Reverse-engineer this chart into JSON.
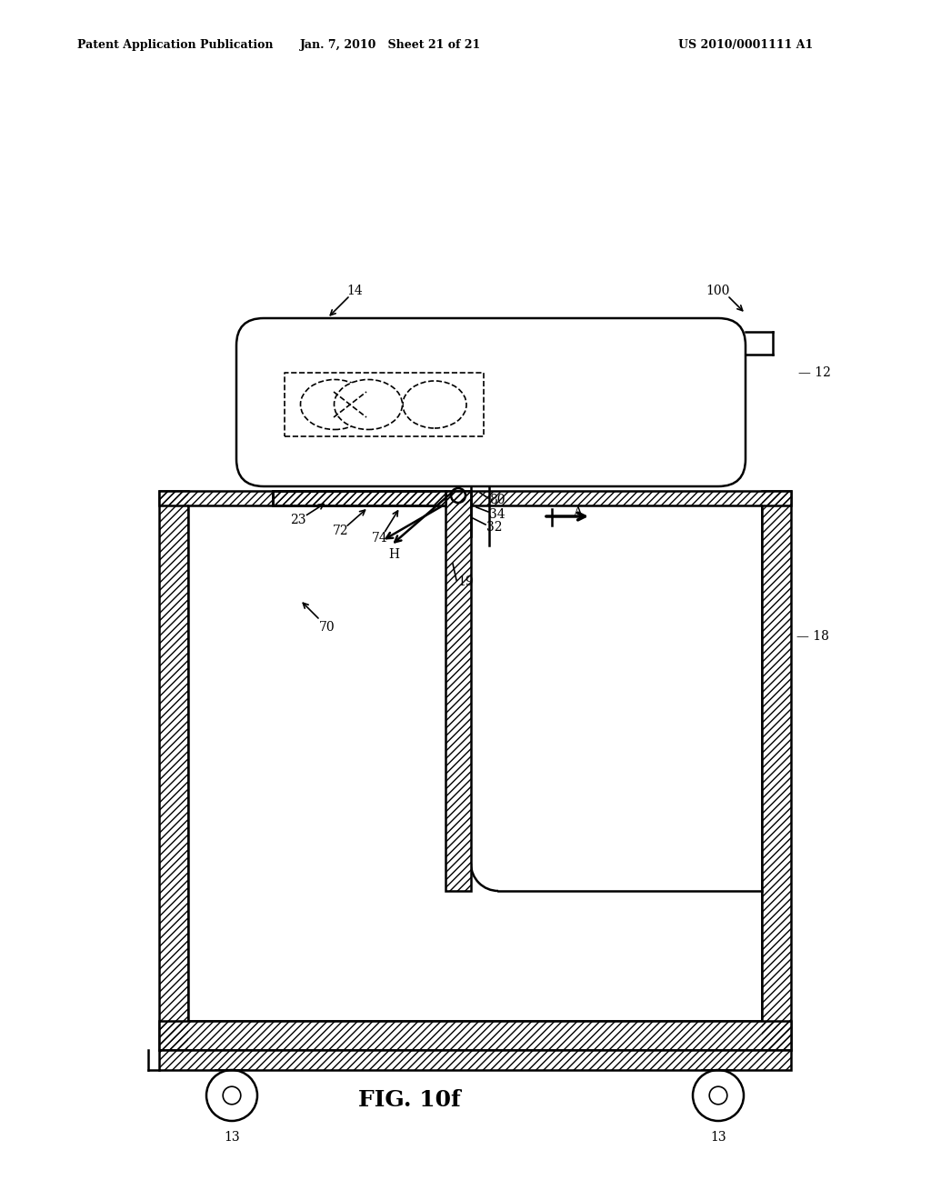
{
  "header_left": "Patent Application Publication",
  "header_mid": "Jan. 7, 2010   Sheet 21 of 21",
  "header_right": "US 2010/0001111 A1",
  "fig_label": "FIG. 10f",
  "background_color": "#ffffff",
  "line_color": "#000000"
}
